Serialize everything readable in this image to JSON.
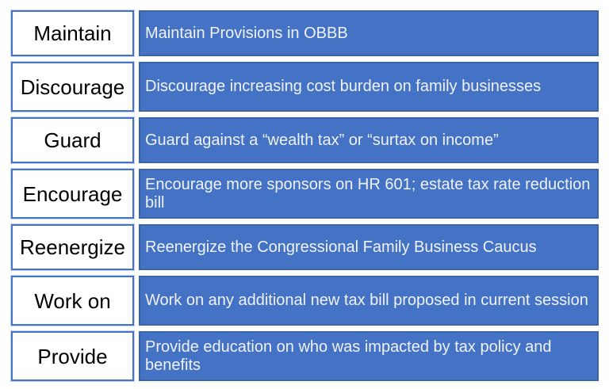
{
  "colors": {
    "background": "#FFFFFF",
    "panel_fill": "#4472C4",
    "panel_border": "#3A63A8",
    "label_box_border": "#4472C4",
    "label_text": "#000000",
    "description_text": "#F0F2F7"
  },
  "table": {
    "rows": [
      {
        "label": "Maintain",
        "description": "Maintain Provisions in OBBB"
      },
      {
        "label": "Discourage",
        "description": "Discourage increasing cost burden on family businesses"
      },
      {
        "label": "Guard",
        "description": "Guard against a “wealth tax” or “surtax on income”"
      },
      {
        "label": "Encourage",
        "description": "Encourage more sponsors on HR 601; estate tax rate reduction bill"
      },
      {
        "label": "Reenergize",
        "description": "Reenergize the Congressional Family Business Caucus"
      },
      {
        "label": "Work on",
        "description": "Work on any additional new tax bill proposed in current session"
      },
      {
        "label": "Provide",
        "description": "Provide education on who was impacted by tax policy and benefits"
      }
    ]
  }
}
